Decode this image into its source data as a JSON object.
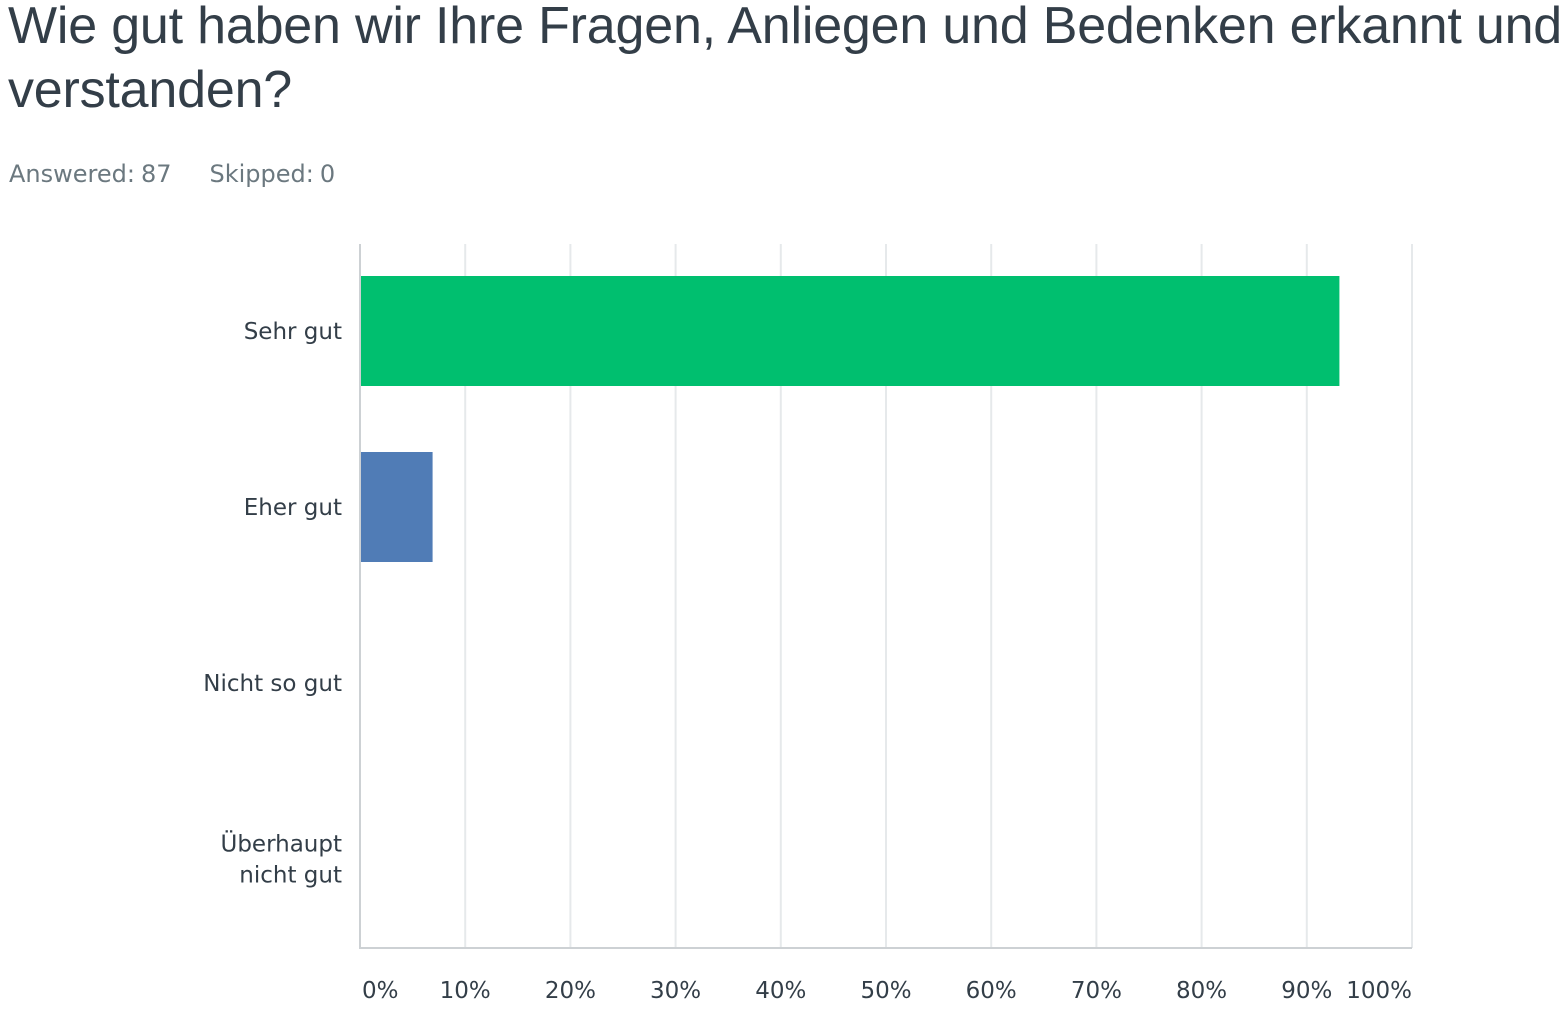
{
  "question": {
    "title": "Wie gut haben wir Ihre Fragen, Anliegen und Bedenken erkannt und verstanden?"
  },
  "stats": {
    "answered_label": "Answered:",
    "answered_value": "87",
    "skipped_label": "Skipped:",
    "skipped_value": "0"
  },
  "colors": {
    "bar_1": "#00bf6f",
    "bar_2": "#507cb6",
    "gridline": "#e6e9eb",
    "axis": "#cdd1d4",
    "text": "#333e48",
    "muted_text": "#6b787f"
  },
  "chart_data": {
    "type": "bar",
    "orientation": "horizontal",
    "categories": [
      [
        "Sehr gut"
      ],
      [
        "Eher gut"
      ],
      [
        "Nicht so gut"
      ],
      [
        "Überhaupt",
        "nicht gut"
      ]
    ],
    "values": [
      93.1,
      6.9,
      0,
      0
    ],
    "unit": "%",
    "xlim": [
      0,
      100
    ],
    "ticks": [
      "0%",
      "10%",
      "20%",
      "30%",
      "40%",
      "50%",
      "60%",
      "70%",
      "80%",
      "90%",
      "100%"
    ],
    "grid": true,
    "legend": false,
    "bar_colors": [
      "#00bf6f",
      "#507cb6",
      "#507cb6",
      "#507cb6"
    ]
  }
}
